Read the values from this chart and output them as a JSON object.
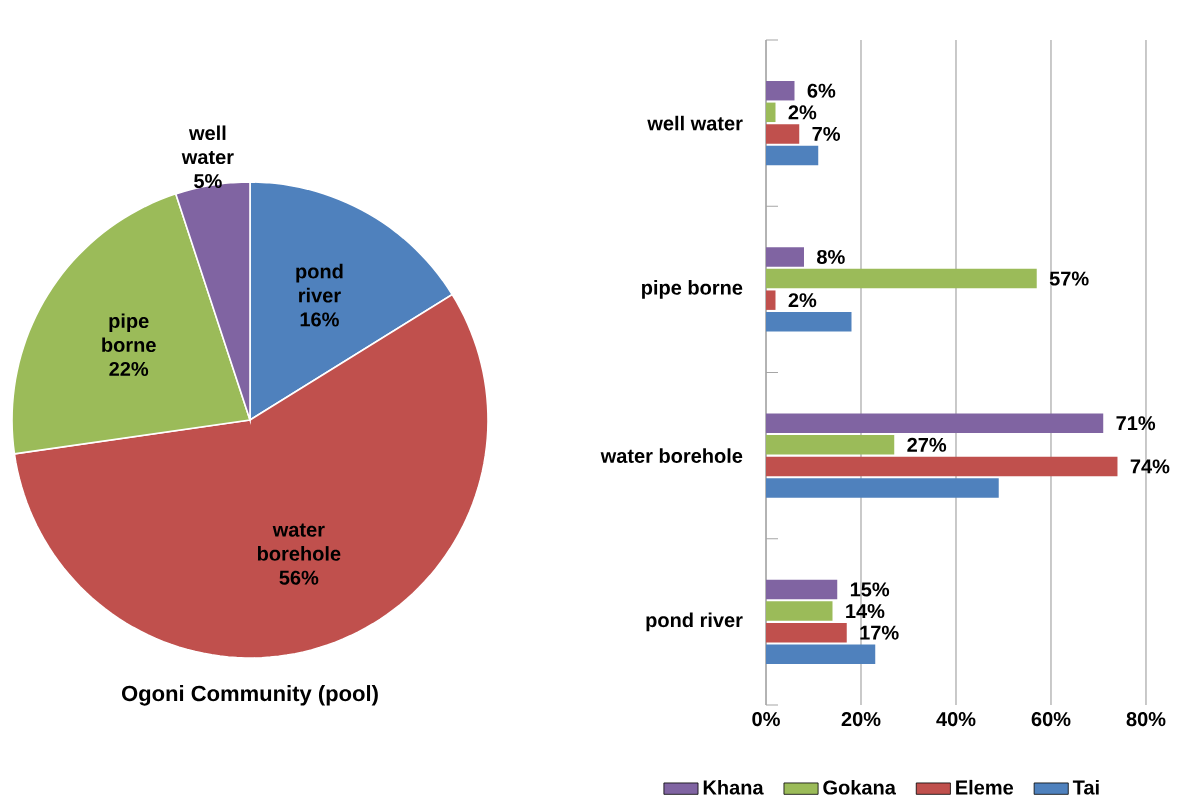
{
  "chart_data": [
    {
      "type": "pie",
      "title": "Ogoni Community (pool)",
      "categories": [
        "pond river",
        "water borehole",
        "pipe borne",
        "well water"
      ],
      "values": [
        16,
        56,
        22,
        5
      ],
      "value_labels": [
        "16%",
        "56%",
        "22%",
        "5%"
      ],
      "colors": [
        "#4f81bd",
        "#c0504d",
        "#9bbb59",
        "#8064a2"
      ]
    },
    {
      "type": "bar",
      "orientation": "horizontal",
      "categories": [
        "well water",
        "pipe borne",
        "water borehole",
        "pond river"
      ],
      "series": [
        {
          "name": "Khana",
          "color": "#8064a2",
          "values": [
            6,
            8,
            71,
            15
          ],
          "value_labels": [
            "6%",
            "8%",
            "71%",
            "15%"
          ]
        },
        {
          "name": "Gokana",
          "color": "#9bbb59",
          "values": [
            2,
            57,
            27,
            14
          ],
          "value_labels": [
            "2%",
            "57%",
            "27%",
            "14%"
          ]
        },
        {
          "name": "Eleme",
          "color": "#c0504d",
          "values": [
            7,
            2,
            74,
            17
          ],
          "value_labels": [
            "7%",
            "2%",
            "74%",
            "17%"
          ]
        },
        {
          "name": "Tai",
          "color": "#4f81bd",
          "values": [
            11,
            18,
            49,
            23
          ]
        }
      ],
      "xlim": [
        0,
        80
      ],
      "xticks": [
        {
          "value": 0,
          "label": "0%"
        },
        {
          "value": 20,
          "label": "20%"
        },
        {
          "value": 40,
          "label": "40%"
        },
        {
          "value": 60,
          "label": "60%"
        },
        {
          "value": 80,
          "label": "80%"
        }
      ],
      "grid": "x",
      "legend": "bottom"
    }
  ]
}
